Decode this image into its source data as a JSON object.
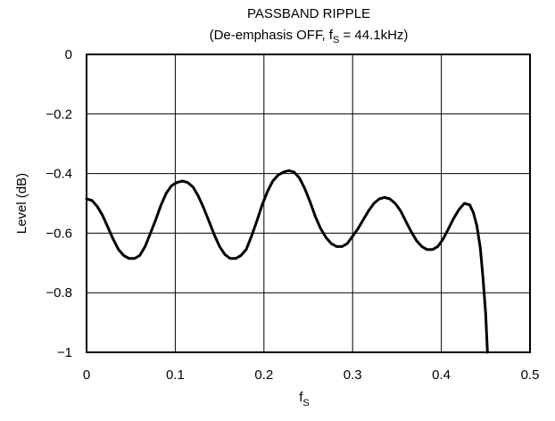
{
  "chart_data": {
    "type": "line",
    "title": "PASSBAND RIPPLE",
    "subtitle": {
      "prefix": "(De-emphasis OFF, f",
      "subscript": "S",
      "suffix": " = 44.1kHz)"
    },
    "xlabel": {
      "main": "f",
      "subscript": "S"
    },
    "ylabel": "Level (dB)",
    "xlim": [
      0,
      0.5
    ],
    "ylim": [
      -1,
      0
    ],
    "x_ticks": [
      0,
      0.1,
      0.2,
      0.3,
      0.4,
      0.5
    ],
    "x_tick_labels": [
      "0",
      "0.1",
      "0.2",
      "0.3",
      "0.4",
      "0.5"
    ],
    "y_ticks": [
      0,
      -0.2,
      -0.4,
      -0.6,
      -0.8,
      -1
    ],
    "y_tick_labels": [
      "0",
      "−0.2",
      "−0.4",
      "−0.6",
      "−0.8",
      "−1"
    ],
    "grid": true,
    "series": [
      {
        "color": "#000000",
        "x": [
          0,
          0.006,
          0.012,
          0.018,
          0.024,
          0.03,
          0.036,
          0.042,
          0.048,
          0.054,
          0.06,
          0.066,
          0.072,
          0.078,
          0.084,
          0.09,
          0.096,
          0.102,
          0.108,
          0.114,
          0.12,
          0.126,
          0.132,
          0.138,
          0.144,
          0.15,
          0.156,
          0.162,
          0.168,
          0.174,
          0.18,
          0.186,
          0.192,
          0.198,
          0.204,
          0.21,
          0.216,
          0.222,
          0.228,
          0.234,
          0.24,
          0.246,
          0.252,
          0.258,
          0.264,
          0.27,
          0.276,
          0.282,
          0.288,
          0.294,
          0.3,
          0.306,
          0.312,
          0.318,
          0.324,
          0.33,
          0.336,
          0.342,
          0.348,
          0.354,
          0.36,
          0.366,
          0.372,
          0.378,
          0.384,
          0.39,
          0.396,
          0.402,
          0.408,
          0.414,
          0.42,
          0.426,
          0.432,
          0.436,
          0.44,
          0.444,
          0.447,
          0.45,
          0.452
        ],
        "y": [
          -0.485,
          -0.49,
          -0.51,
          -0.54,
          -0.58,
          -0.62,
          -0.655,
          -0.675,
          -0.685,
          -0.685,
          -0.675,
          -0.645,
          -0.6,
          -0.555,
          -0.505,
          -0.465,
          -0.44,
          -0.43,
          -0.425,
          -0.43,
          -0.445,
          -0.475,
          -0.515,
          -0.56,
          -0.605,
          -0.645,
          -0.672,
          -0.685,
          -0.685,
          -0.675,
          -0.655,
          -0.61,
          -0.56,
          -0.505,
          -0.46,
          -0.425,
          -0.405,
          -0.395,
          -0.39,
          -0.395,
          -0.415,
          -0.45,
          -0.495,
          -0.545,
          -0.585,
          -0.615,
          -0.635,
          -0.645,
          -0.645,
          -0.635,
          -0.61,
          -0.585,
          -0.555,
          -0.525,
          -0.5,
          -0.485,
          -0.48,
          -0.485,
          -0.5,
          -0.525,
          -0.56,
          -0.595,
          -0.625,
          -0.645,
          -0.655,
          -0.655,
          -0.645,
          -0.62,
          -0.585,
          -0.55,
          -0.52,
          -0.5,
          -0.505,
          -0.53,
          -0.575,
          -0.65,
          -0.75,
          -0.87,
          -1.0
        ]
      }
    ]
  }
}
